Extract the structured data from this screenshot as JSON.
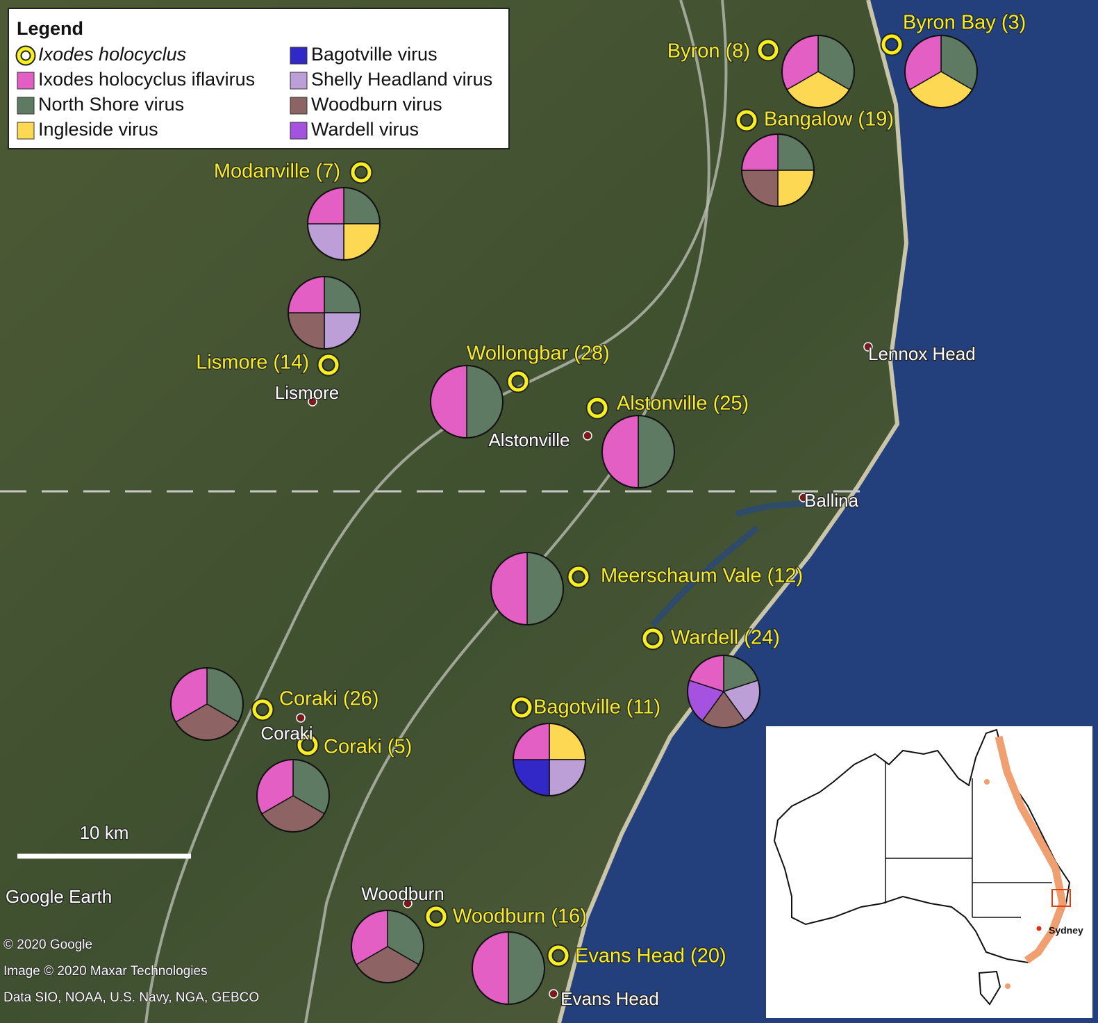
{
  "legend": {
    "title": "Legend",
    "items": [
      {
        "label": "Ixodes holocyclus",
        "color": "#f7ef22",
        "marker": "ring",
        "style": "italic"
      },
      {
        "label": "Ixodes holocyclus iflavirus",
        "color": "#e35fc4",
        "marker": "square"
      },
      {
        "label": "North Shore virus",
        "color": "#5f7a62",
        "marker": "square"
      },
      {
        "label": "Ingleside virus",
        "color": "#fdd853",
        "marker": "square"
      },
      {
        "label": "Bagotville virus",
        "color": "#3228c8",
        "marker": "square"
      },
      {
        "label": "Shelly Headland virus",
        "color": "#bb9fd6",
        "marker": "square"
      },
      {
        "label": "Woodburn virus",
        "color": "#8d6363",
        "marker": "square"
      },
      {
        "label": "Wardell virus",
        "color": "#a552e0",
        "marker": "square"
      }
    ]
  },
  "sites": [
    {
      "label": "Byron (8)",
      "viruses": [
        "North Shore virus",
        "Ingleside virus",
        "Ixodes holocyclus iflavirus"
      ]
    },
    {
      "label": "Byron Bay (3)",
      "viruses": [
        "North Shore virus",
        "Ingleside virus",
        "Ixodes holocyclus iflavirus"
      ]
    },
    {
      "label": "Bangalow (19)",
      "viruses": [
        "North Shore virus",
        "Ingleside virus",
        "Woodburn virus",
        "Ixodes holocyclus iflavirus"
      ]
    },
    {
      "label": "Modanville (7)",
      "viruses": [
        "North Shore virus",
        "Ingleside virus",
        "Shelly Headland virus",
        "Ixodes holocyclus iflavirus"
      ]
    },
    {
      "label": "Lismore (14)",
      "viruses": [
        "North Shore virus",
        "Shelly Headland virus",
        "Woodburn virus",
        "Ixodes holocyclus iflavirus"
      ]
    },
    {
      "label": "Wollongbar (28)",
      "viruses": [
        "North Shore virus",
        "Ixodes holocyclus iflavirus"
      ]
    },
    {
      "label": "Alstonville (25)",
      "viruses": [
        "North Shore virus",
        "Ixodes holocyclus iflavirus"
      ]
    },
    {
      "label": "Meerschaum Vale (12)",
      "viruses": [
        "North Shore virus",
        "Ixodes holocyclus iflavirus"
      ]
    },
    {
      "label": "Wardell (24)",
      "viruses": [
        "North Shore virus",
        "Shelly Headland virus",
        "Woodburn virus",
        "Wardell virus",
        "Ixodes holocyclus iflavirus"
      ]
    },
    {
      "label": "Bagotville (11)",
      "viruses": [
        "Ingleside virus",
        "Shelly Headland virus",
        "Bagotville virus",
        "Ixodes holocyclus iflavirus"
      ]
    },
    {
      "label": "Coraki (26)",
      "viruses": [
        "North Shore virus",
        "Woodburn virus",
        "Ixodes holocyclus iflavirus"
      ]
    },
    {
      "label": "Coraki (5)",
      "viruses": [
        "North Shore virus",
        "Woodburn virus",
        "Ixodes holocyclus iflavirus"
      ]
    },
    {
      "label": "Woodburn (16)",
      "viruses": [
        "North Shore virus",
        "Woodburn virus",
        "Ixodes holocyclus iflavirus"
      ]
    },
    {
      "label": "Evans Head (20)",
      "viruses": [
        "North Shore virus",
        "Ixodes holocyclus iflavirus"
      ]
    }
  ],
  "towns": [
    "Lismore",
    "Alstonville",
    "Ballina",
    "Lennox Head",
    "Coraki",
    "Woodburn",
    "Evans Head"
  ],
  "scale_bar": "10 km",
  "branding": "Google Earth",
  "credits": [
    "© 2020 Google",
    "Image © 2020 Maxar Technologies",
    "Data SIO, NOAA, U.S. Navy, NGA, GEBCO"
  ],
  "inset": {
    "label": "Sydney"
  }
}
